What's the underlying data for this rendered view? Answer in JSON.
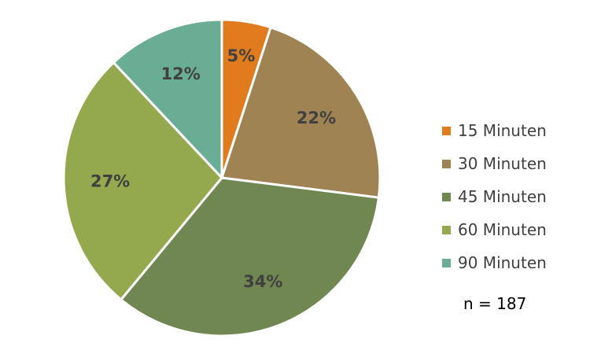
{
  "chart_data": {
    "type": "pie",
    "categories": [
      "15 Minuten",
      "30 Minuten",
      "45 Minuten",
      "60 Minuten",
      "90 Minuten"
    ],
    "values": [
      5,
      22,
      34,
      27,
      12
    ],
    "data_labels": [
      "5%",
      "22%",
      "34%",
      "27%",
      "12%"
    ],
    "colors": [
      "#E07B1E",
      "#A08353",
      "#708752",
      "#94A94E",
      "#68AD94"
    ],
    "start_angle_deg": 0,
    "direction": "clockwise",
    "legend_placement": "right",
    "annotation": "n = 187"
  }
}
